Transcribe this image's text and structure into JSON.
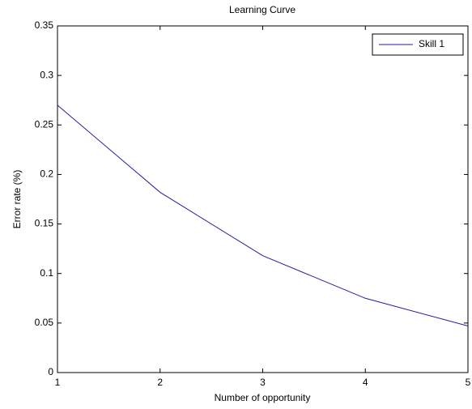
{
  "chart_data": {
    "type": "line",
    "title": "Learning Curve",
    "x_label": "Number of opportunity",
    "y_label": "Error rate (%)",
    "x": [
      1,
      2,
      3,
      4,
      5
    ],
    "series": [
      {
        "name": "Skill 1",
        "color": "#1f1fa0",
        "values": [
          0.27,
          0.182,
          0.118,
          0.075,
          0.047
        ]
      }
    ],
    "xlim": [
      1,
      5
    ],
    "xticks": [
      1,
      2,
      3,
      4,
      5
    ],
    "ylim": [
      0,
      0.35
    ],
    "yticks": [
      0,
      0.05,
      0.1,
      0.15,
      0.2,
      0.25,
      0.3,
      0.35
    ],
    "grid": false,
    "legend": "upper right"
  }
}
